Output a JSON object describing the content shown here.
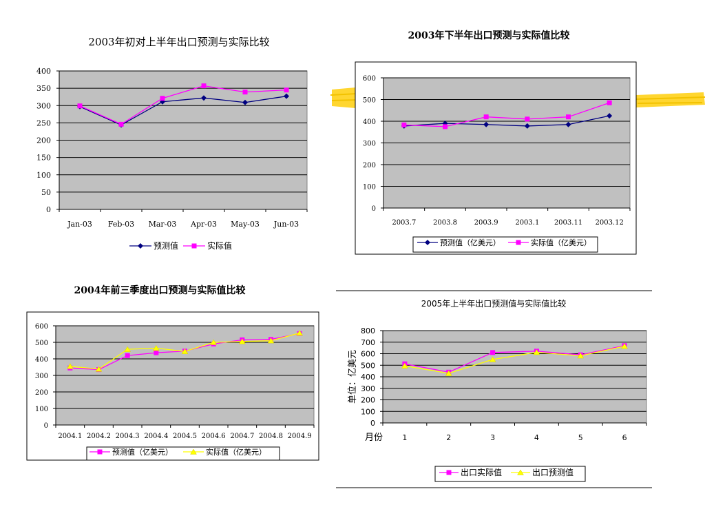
{
  "colors": {
    "forecast_navy": "#000080",
    "actual_magenta": "#ff00ff",
    "forecast_yellow": "#ffff00",
    "plot_bg": "#c0c0c0",
    "highlight": "#ffd21a"
  },
  "chart_data": [
    {
      "type": "line",
      "title": "2003年初对上半年出口预测与实际比较",
      "categories": [
        "Jan-03",
        "Feb-03",
        "Mar-03",
        "Apr-03",
        "May-03",
        "Jun-03"
      ],
      "ylim": [
        0,
        400
      ],
      "yticks": [
        0,
        50,
        100,
        150,
        200,
        250,
        300,
        350,
        400
      ],
      "grid": true,
      "legend_position": "bottom",
      "series": [
        {
          "name": "预测值",
          "color": "#000080",
          "marker": "diamond",
          "values": [
            297,
            244,
            311,
            322,
            309,
            327
          ]
        },
        {
          "name": "实际值",
          "color": "#ff00ff",
          "marker": "square",
          "values": [
            299,
            246,
            321,
            357,
            339,
            345
          ]
        }
      ]
    },
    {
      "type": "line",
      "title": "2003年下半年出口预测与实际值比较",
      "categories": [
        "2003.7",
        "2003.8",
        "2003.9",
        "2003.1",
        "2003.11",
        "2003.12"
      ],
      "ylim": [
        0,
        600
      ],
      "yticks": [
        0,
        100,
        200,
        300,
        400,
        500,
        600
      ],
      "grid": true,
      "legend_position": "bottom",
      "series": [
        {
          "name": "预测值（亿美元）",
          "color": "#000080",
          "marker": "diamond",
          "values": [
            378,
            390,
            385,
            378,
            385,
            425
          ]
        },
        {
          "name": "实际值（亿美元）",
          "color": "#ff00ff",
          "marker": "square",
          "values": [
            383,
            375,
            420,
            410,
            420,
            485
          ]
        }
      ]
    },
    {
      "type": "line",
      "title": "2004年前三季度出口预测与实际值比较",
      "categories": [
        "2004.1",
        "2004.2",
        "2004.3",
        "2004.4",
        "2004.5",
        "2004.6",
        "2004.7",
        "2004.8",
        "2004.9"
      ],
      "ylim": [
        0,
        600
      ],
      "yticks": [
        0,
        100,
        200,
        300,
        400,
        500,
        600
      ],
      "grid": true,
      "legend_position": "bottom",
      "series": [
        {
          "name": "预测值（亿美元）",
          "color": "#ff00ff",
          "marker": "square",
          "values": [
            345,
            335,
            420,
            437,
            447,
            490,
            515,
            518,
            553
          ]
        },
        {
          "name": "实际值（亿美元）",
          "color": "#ffff00",
          "marker": "triangle",
          "values": [
            355,
            338,
            458,
            465,
            445,
            500,
            505,
            510,
            556
          ]
        }
      ]
    },
    {
      "type": "line",
      "title": "2005年上半年出口预测值与实际值比较",
      "ylabel": "单位：亿美元",
      "xlabel": "月份",
      "categories": [
        "1",
        "2",
        "3",
        "4",
        "5",
        "6"
      ],
      "ylim": [
        0,
        800
      ],
      "yticks": [
        0,
        100,
        200,
        300,
        400,
        500,
        600,
        700,
        800
      ],
      "grid": true,
      "legend_position": "bottom",
      "series": [
        {
          "name": "出口实际值",
          "color": "#ff00ff",
          "marker": "square",
          "values": [
            512,
            440,
            610,
            622,
            590,
            670
          ]
        },
        {
          "name": "出口预测值",
          "color": "#ffff00",
          "marker": "triangle",
          "values": [
            495,
            430,
            550,
            612,
            582,
            665
          ]
        }
      ]
    }
  ]
}
